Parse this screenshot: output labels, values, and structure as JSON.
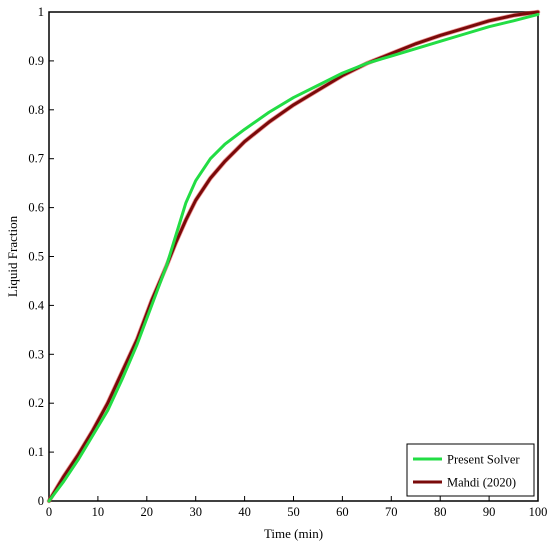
{
  "chart_data": {
    "type": "line",
    "title": "",
    "xlabel": "Time (min)",
    "ylabel": "Liquid Fraction",
    "xlim": [
      0,
      100
    ],
    "ylim": [
      0,
      1
    ],
    "x_ticks": [
      "0",
      "10",
      "20",
      "30",
      "40",
      "50",
      "60",
      "70",
      "80",
      "90",
      "100"
    ],
    "y_ticks": [
      "0",
      "0.1",
      "0.2",
      "0.3",
      "0.4",
      "0.5",
      "0.6",
      "0.7",
      "0.8",
      "0.9",
      "1"
    ],
    "grid": false,
    "legend_position": "bottom-right",
    "series": [
      {
        "name": "Present Solver",
        "color": "#22dd44",
        "x": [
          0,
          3,
          6,
          9,
          12,
          15,
          18,
          21,
          24,
          26,
          28,
          30,
          33,
          36,
          40,
          45,
          50,
          55,
          60,
          65,
          70,
          75,
          80,
          85,
          90,
          95,
          100
        ],
        "y": [
          0,
          0.04,
          0.085,
          0.135,
          0.185,
          0.25,
          0.32,
          0.4,
          0.48,
          0.545,
          0.61,
          0.655,
          0.7,
          0.73,
          0.76,
          0.795,
          0.825,
          0.85,
          0.875,
          0.895,
          0.91,
          0.925,
          0.94,
          0.955,
          0.97,
          0.982,
          0.995
        ]
      },
      {
        "name": "Mahdi (2020)",
        "color": "#7a0a0a",
        "x": [
          0,
          3,
          6,
          9,
          12,
          15,
          18,
          21,
          24,
          26,
          28,
          30,
          33,
          36,
          40,
          45,
          50,
          55,
          60,
          65,
          70,
          75,
          80,
          85,
          90,
          95,
          100
        ],
        "y": [
          0,
          0.05,
          0.095,
          0.145,
          0.2,
          0.265,
          0.33,
          0.41,
          0.48,
          0.53,
          0.575,
          0.615,
          0.66,
          0.695,
          0.735,
          0.775,
          0.81,
          0.84,
          0.87,
          0.895,
          0.915,
          0.935,
          0.952,
          0.967,
          0.982,
          0.993,
          1.0
        ]
      }
    ]
  }
}
